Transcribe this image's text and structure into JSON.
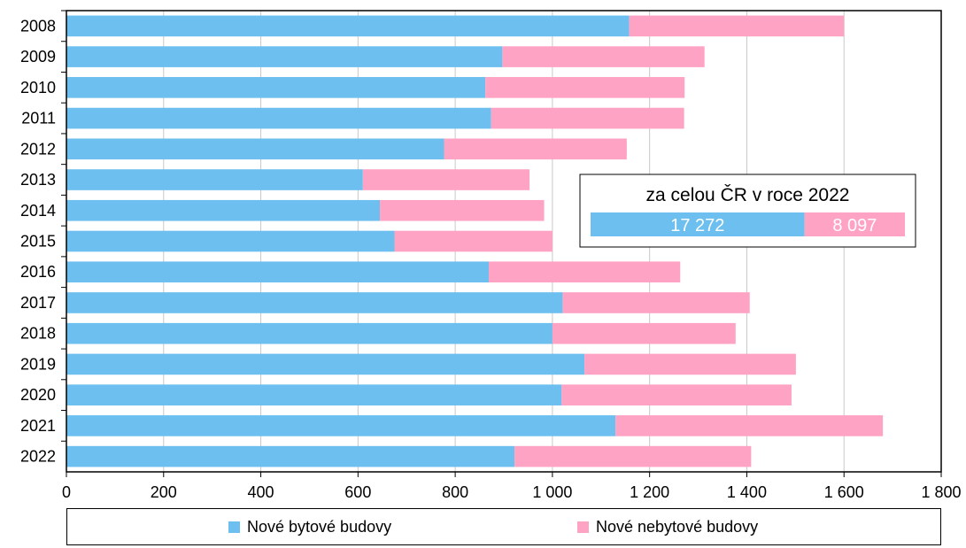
{
  "chart_data": {
    "type": "bar",
    "orientation": "horizontal",
    "stacked": true,
    "categories": [
      "2008",
      "2009",
      "2010",
      "2011",
      "2012",
      "2013",
      "2014",
      "2015",
      "2016",
      "2017",
      "2018",
      "2019",
      "2020",
      "2021",
      "2022"
    ],
    "series": [
      {
        "name": "Nové bytové budovy",
        "color": "#6cbfee",
        "values": [
          1158,
          897,
          862,
          874,
          777,
          610,
          645,
          675,
          869,
          1021,
          1000,
          1066,
          1019,
          1130,
          922
        ]
      },
      {
        "name": "Nové nebytové budovy",
        "color": "#ffa3c4",
        "values": [
          442,
          416,
          410,
          397,
          376,
          343,
          338,
          325,
          394,
          385,
          377,
          435,
          473,
          550,
          487
        ]
      }
    ],
    "xlim": [
      0,
      1800
    ],
    "xticks": [
      0,
      200,
      400,
      600,
      800,
      1000,
      1200,
      1400,
      1600,
      1800
    ],
    "xtick_labels": [
      "0",
      "200",
      "400",
      "600",
      "800",
      "1 000",
      "1 200",
      "1 400",
      "1 600",
      "1 800"
    ],
    "grid": "vertical",
    "legend_position": "bottom",
    "inset": {
      "title": "za celou ČR v roce 2022",
      "values": [
        17272,
        8097
      ],
      "labels": [
        "17 272",
        "8 097"
      ]
    }
  }
}
